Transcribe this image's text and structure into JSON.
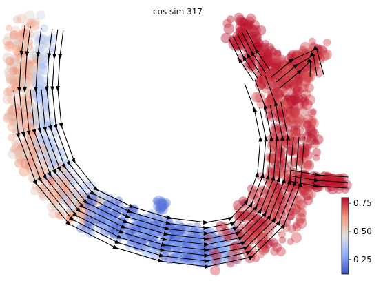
{
  "chart_data": {
    "type": "scatter",
    "title": "cos sim 317",
    "xlabel": "",
    "ylabel": "",
    "axes_visible": false,
    "overlay": "velocity streamlines with arrowheads",
    "colormap": "coolwarm",
    "colorbar": {
      "ticks": [
        0.25,
        0.5,
        0.75
      ],
      "tick_labels": [
        "0.25",
        "0.50",
        "0.75"
      ],
      "vmin": 0.12,
      "vmax": 0.8
    },
    "regions": [
      {
        "name": "left arm",
        "value_range": [
          0.4,
          0.65
        ]
      },
      {
        "name": "left arm inner edge",
        "value_range": [
          0.15,
          0.3
        ]
      },
      {
        "name": "bottom trough",
        "value_range": [
          0.12,
          0.25
        ]
      },
      {
        "name": "right arm",
        "value_range": [
          0.7,
          0.8
        ]
      },
      {
        "name": "top-right lobes",
        "value_range": [
          0.75,
          0.8
        ]
      }
    ]
  },
  "colors": {
    "low": "#3b4cc0",
    "mid": "#dddddd",
    "high": "#b40426",
    "stream": "#000000"
  }
}
